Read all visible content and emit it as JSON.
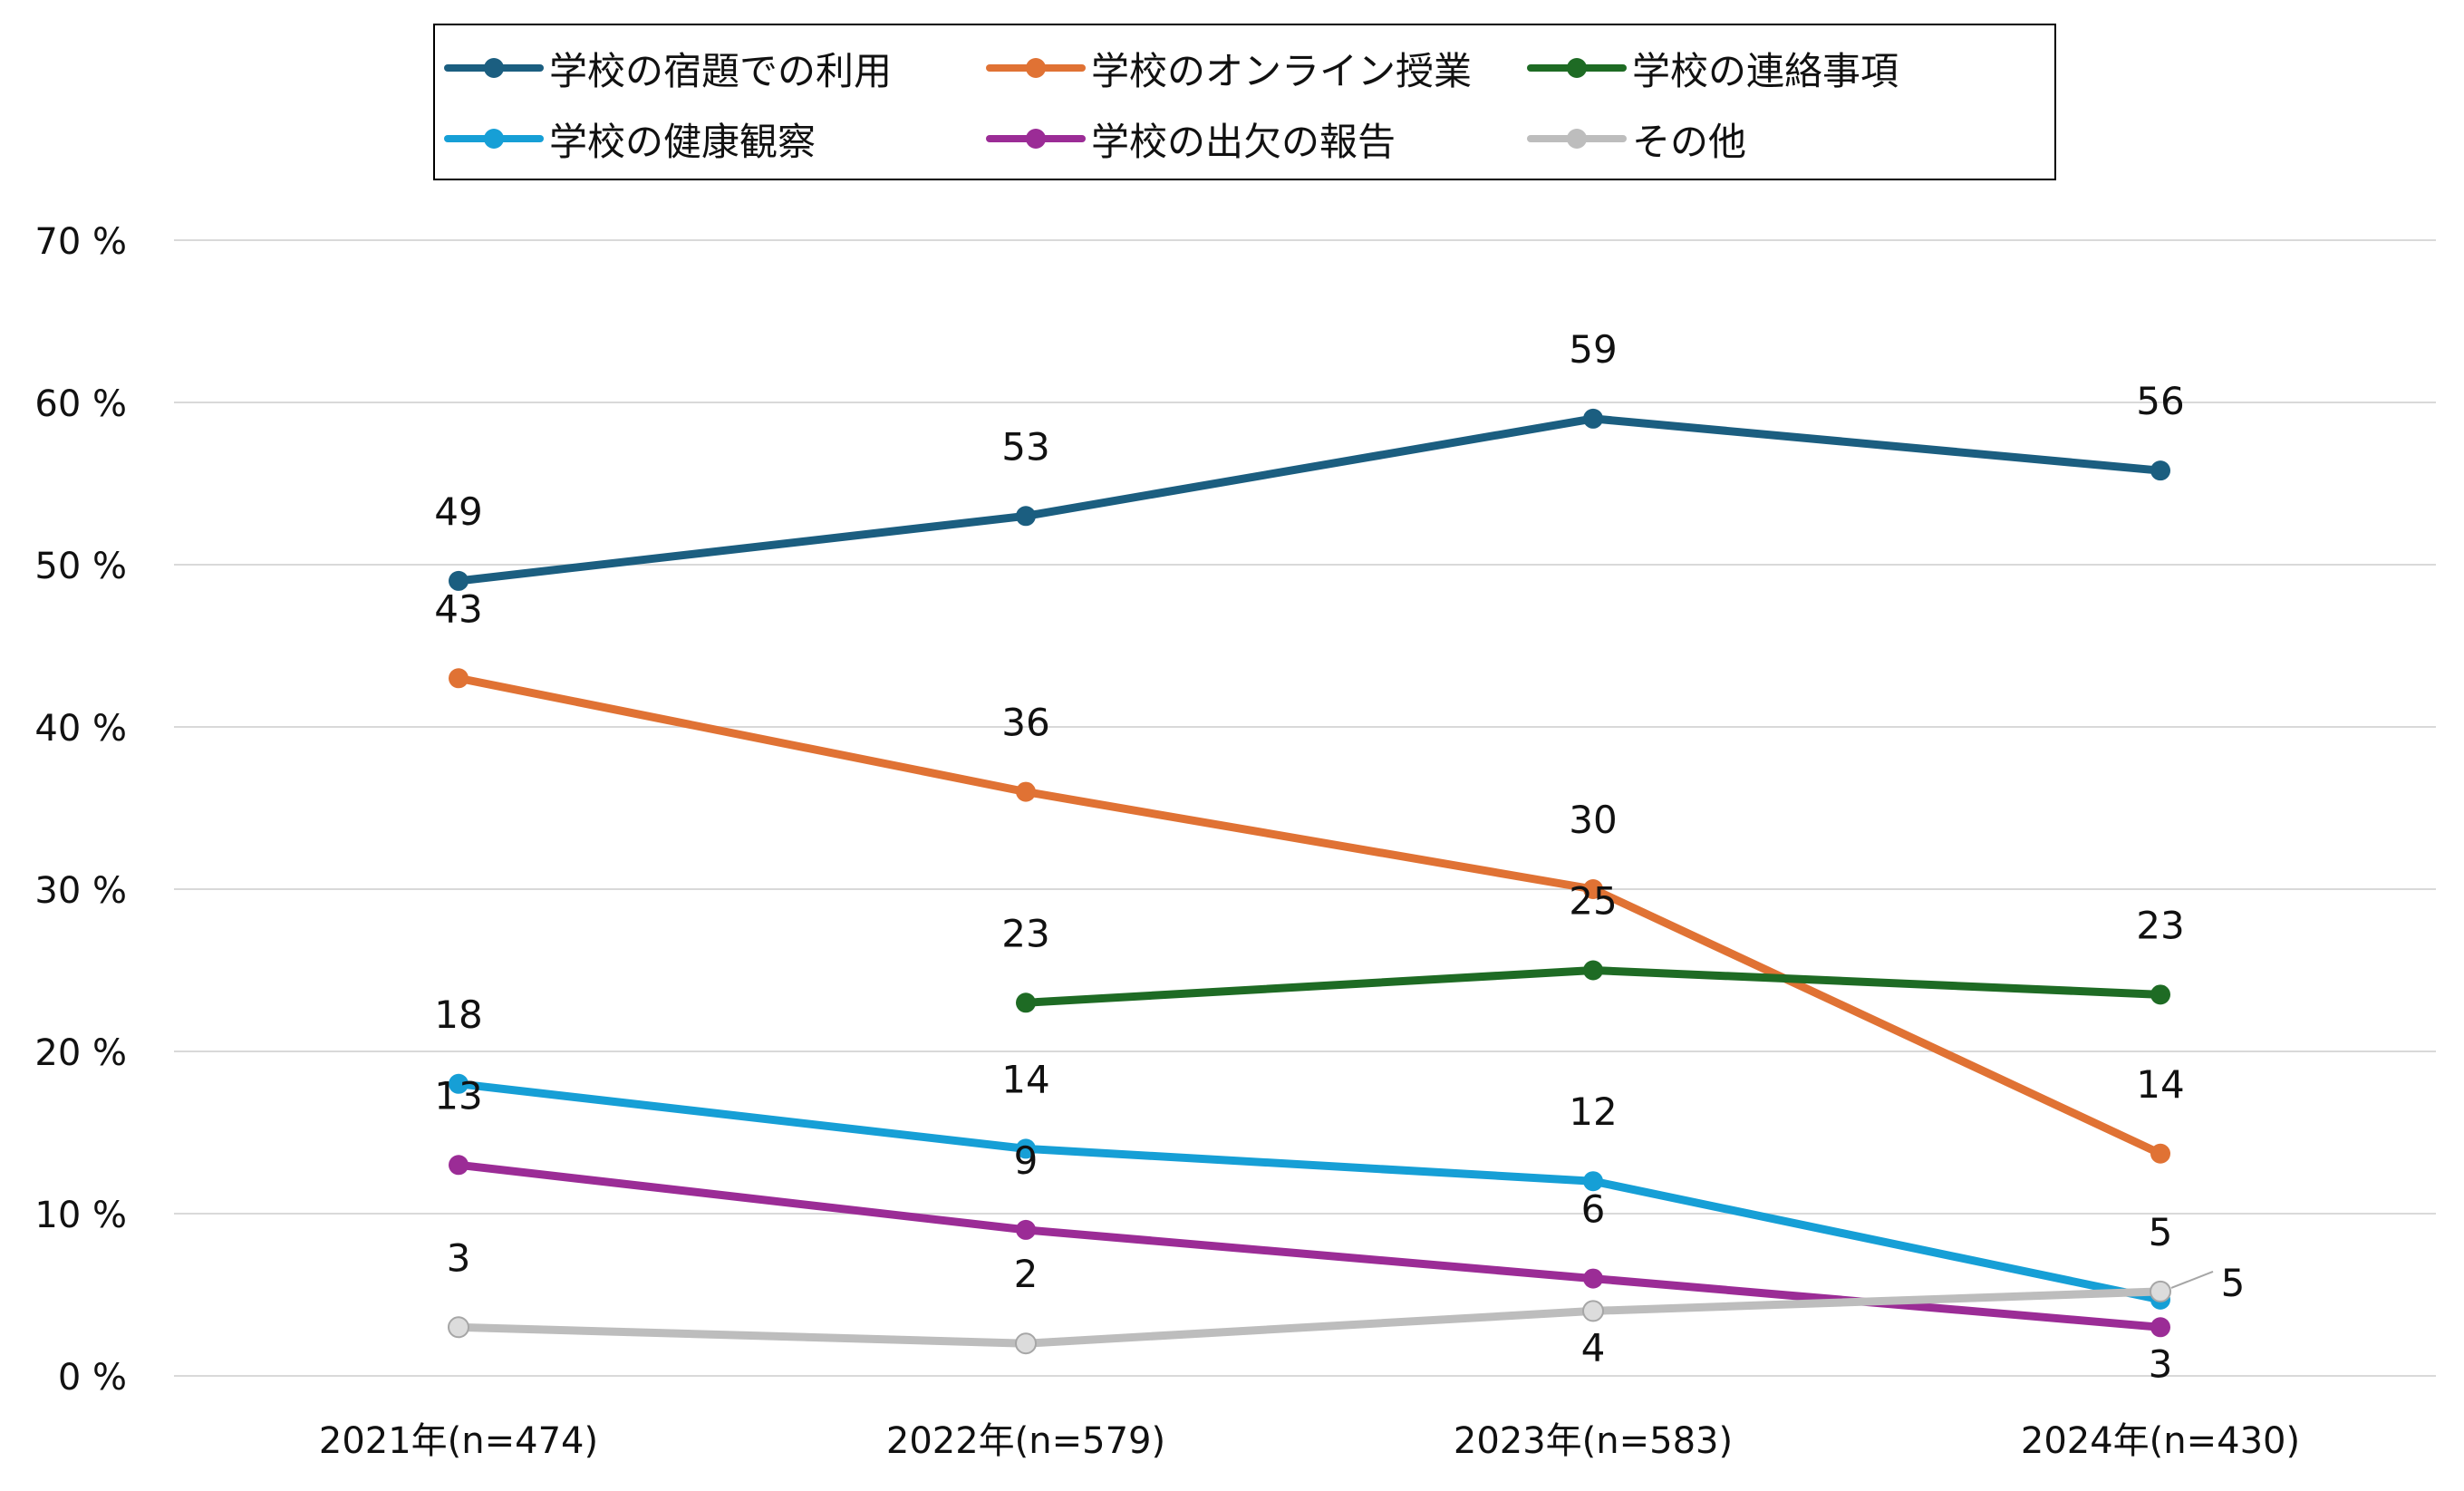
{
  "chart_data": {
    "type": "line",
    "categories": [
      "2021年(n=474)",
      "2022年(n=579)",
      "2023年(n=583)",
      "2024年(n=430)"
    ],
    "ylim": [
      0,
      70
    ],
    "yticks": [
      {
        "value": 0,
        "label": "0 %"
      },
      {
        "value": 10,
        "label": "10 %"
      },
      {
        "value": 20,
        "label": "20 %"
      },
      {
        "value": 30,
        "label": "30 %"
      },
      {
        "value": 40,
        "label": "40 %"
      },
      {
        "value": 50,
        "label": "50 %"
      },
      {
        "value": 60,
        "label": "60 %"
      },
      {
        "value": 70,
        "label": "70 %"
      }
    ],
    "grid": true,
    "legend_position": "top",
    "series": [
      {
        "name": "学校の宿題での利用",
        "color": "#1b5e80",
        "values": [
          49,
          53,
          59,
          55.8
        ],
        "labels": [
          "49",
          "53",
          "59",
          "56"
        ]
      },
      {
        "name": "学校のオンライン授業",
        "color": "#e07234",
        "values": [
          43,
          36,
          30,
          13.7
        ],
        "labels": [
          "43",
          "36",
          "30",
          "14"
        ]
      },
      {
        "name": "学校の連絡事項",
        "color": "#1e6b24",
        "values": [
          null,
          23,
          25,
          23.5
        ],
        "labels": [
          null,
          "23",
          "25",
          "23"
        ]
      },
      {
        "name": "学校の健康観察",
        "color": "#169fd6",
        "values": [
          18,
          14,
          12,
          4.7
        ],
        "labels": [
          "18",
          "14",
          "12",
          "5"
        ]
      },
      {
        "name": "学校の出欠の報告",
        "color": "#9b2c96",
        "values": [
          13,
          9,
          6,
          3
        ],
        "labels": [
          "13",
          "9",
          "6",
          "3"
        ]
      },
      {
        "name": "その他",
        "color": "#bdbdbd",
        "values": [
          3,
          2,
          4,
          5.2
        ],
        "labels": [
          "3",
          "2",
          "4",
          "5"
        ]
      }
    ]
  }
}
